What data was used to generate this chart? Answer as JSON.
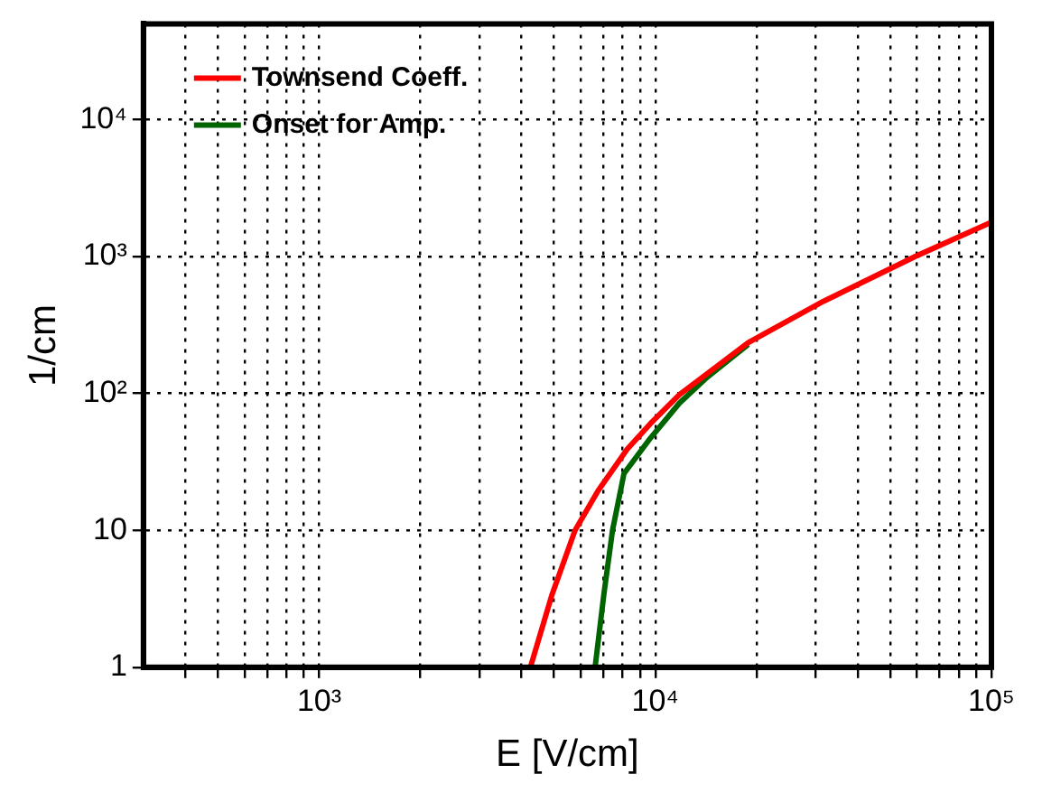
{
  "chart_data": {
    "type": "line",
    "xlabel": "E [V/cm]",
    "ylabel": "1/cm",
    "log": "xy",
    "grid": true,
    "legend": "top left",
    "line_style": "solid",
    "marker": "none",
    "xlim": [
      300,
      100000
    ],
    "ylim": [
      1,
      50000
    ],
    "xticks": [
      {
        "value": 400,
        "label": null
      },
      {
        "value": 500,
        "label": null
      },
      {
        "value": 600,
        "label": null
      },
      {
        "value": 700,
        "label": null
      },
      {
        "value": 800,
        "label": null
      },
      {
        "value": 900,
        "label": null
      },
      {
        "value": 1000,
        "label": "10³"
      },
      {
        "value": 2000,
        "label": null
      },
      {
        "value": 3000,
        "label": null
      },
      {
        "value": 4000,
        "label": null
      },
      {
        "value": 5000,
        "label": null
      },
      {
        "value": 6000,
        "label": null
      },
      {
        "value": 7000,
        "label": null
      },
      {
        "value": 8000,
        "label": null
      },
      {
        "value": 9000,
        "label": null
      },
      {
        "value": 10000,
        "label": "10⁴"
      },
      {
        "value": 20000,
        "label": null
      },
      {
        "value": 30000,
        "label": null
      },
      {
        "value": 40000,
        "label": null
      },
      {
        "value": 50000,
        "label": null
      },
      {
        "value": 60000,
        "label": null
      },
      {
        "value": 70000,
        "label": null
      },
      {
        "value": 80000,
        "label": null
      },
      {
        "value": 90000,
        "label": null
      },
      {
        "value": 100000,
        "label": "10⁵"
      }
    ],
    "yticks": [
      1,
      10,
      {
        "value": 100,
        "label": "10²"
      },
      {
        "value": 1000,
        "label": "10³"
      },
      {
        "value": 10000,
        "label": "10⁴"
      }
    ],
    "series": [
      {
        "name": "Townsend Coeff.",
        "color": "#ff0000",
        "x": [
          4250,
          4930,
          5770,
          6760,
          8240,
          9660,
          11800,
          18900,
          31600,
          59300,
          100000
        ],
        "values": [
          1,
          3.4,
          10,
          19.5,
          39,
          60,
          98,
          235,
          470,
          1000,
          1780
        ]
      },
      {
        "name": "Onset for Amp.",
        "color": "#006400",
        "x": [
          6620,
          7030,
          7460,
          8070,
          9660,
          11800,
          14300,
          18900
        ],
        "values": [
          1,
          3.4,
          10,
          26,
          47,
          85,
          132,
          228
        ]
      }
    ]
  }
}
